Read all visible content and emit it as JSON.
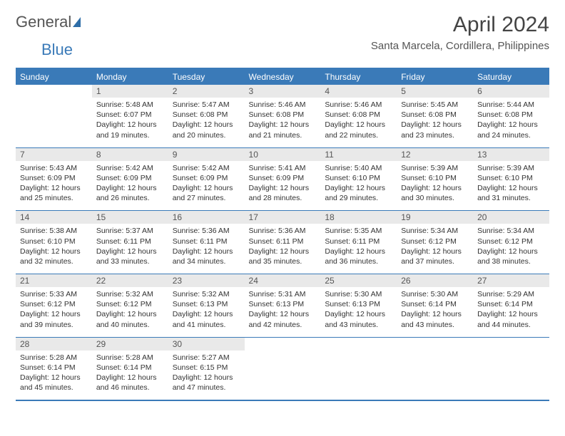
{
  "brand": {
    "part1": "General",
    "part2": "Blue"
  },
  "title": "April 2024",
  "location": "Santa Marcela, Cordillera, Philippines",
  "colors": {
    "primary": "#3a7ab8",
    "header_gray": "#e9e9e9",
    "text": "#333333",
    "bg": "#ffffff"
  },
  "day_headers": [
    "Sunday",
    "Monday",
    "Tuesday",
    "Wednesday",
    "Thursday",
    "Friday",
    "Saturday"
  ],
  "weeks": [
    [
      {
        "n": "",
        "lines": [
          "",
          "",
          "",
          ""
        ]
      },
      {
        "n": "1",
        "lines": [
          "Sunrise: 5:48 AM",
          "Sunset: 6:07 PM",
          "Daylight: 12 hours",
          "and 19 minutes."
        ]
      },
      {
        "n": "2",
        "lines": [
          "Sunrise: 5:47 AM",
          "Sunset: 6:08 PM",
          "Daylight: 12 hours",
          "and 20 minutes."
        ]
      },
      {
        "n": "3",
        "lines": [
          "Sunrise: 5:46 AM",
          "Sunset: 6:08 PM",
          "Daylight: 12 hours",
          "and 21 minutes."
        ]
      },
      {
        "n": "4",
        "lines": [
          "Sunrise: 5:46 AM",
          "Sunset: 6:08 PM",
          "Daylight: 12 hours",
          "and 22 minutes."
        ]
      },
      {
        "n": "5",
        "lines": [
          "Sunrise: 5:45 AM",
          "Sunset: 6:08 PM",
          "Daylight: 12 hours",
          "and 23 minutes."
        ]
      },
      {
        "n": "6",
        "lines": [
          "Sunrise: 5:44 AM",
          "Sunset: 6:08 PM",
          "Daylight: 12 hours",
          "and 24 minutes."
        ]
      }
    ],
    [
      {
        "n": "7",
        "lines": [
          "Sunrise: 5:43 AM",
          "Sunset: 6:09 PM",
          "Daylight: 12 hours",
          "and 25 minutes."
        ]
      },
      {
        "n": "8",
        "lines": [
          "Sunrise: 5:42 AM",
          "Sunset: 6:09 PM",
          "Daylight: 12 hours",
          "and 26 minutes."
        ]
      },
      {
        "n": "9",
        "lines": [
          "Sunrise: 5:42 AM",
          "Sunset: 6:09 PM",
          "Daylight: 12 hours",
          "and 27 minutes."
        ]
      },
      {
        "n": "10",
        "lines": [
          "Sunrise: 5:41 AM",
          "Sunset: 6:09 PM",
          "Daylight: 12 hours",
          "and 28 minutes."
        ]
      },
      {
        "n": "11",
        "lines": [
          "Sunrise: 5:40 AM",
          "Sunset: 6:10 PM",
          "Daylight: 12 hours",
          "and 29 minutes."
        ]
      },
      {
        "n": "12",
        "lines": [
          "Sunrise: 5:39 AM",
          "Sunset: 6:10 PM",
          "Daylight: 12 hours",
          "and 30 minutes."
        ]
      },
      {
        "n": "13",
        "lines": [
          "Sunrise: 5:39 AM",
          "Sunset: 6:10 PM",
          "Daylight: 12 hours",
          "and 31 minutes."
        ]
      }
    ],
    [
      {
        "n": "14",
        "lines": [
          "Sunrise: 5:38 AM",
          "Sunset: 6:10 PM",
          "Daylight: 12 hours",
          "and 32 minutes."
        ]
      },
      {
        "n": "15",
        "lines": [
          "Sunrise: 5:37 AM",
          "Sunset: 6:11 PM",
          "Daylight: 12 hours",
          "and 33 minutes."
        ]
      },
      {
        "n": "16",
        "lines": [
          "Sunrise: 5:36 AM",
          "Sunset: 6:11 PM",
          "Daylight: 12 hours",
          "and 34 minutes."
        ]
      },
      {
        "n": "17",
        "lines": [
          "Sunrise: 5:36 AM",
          "Sunset: 6:11 PM",
          "Daylight: 12 hours",
          "and 35 minutes."
        ]
      },
      {
        "n": "18",
        "lines": [
          "Sunrise: 5:35 AM",
          "Sunset: 6:11 PM",
          "Daylight: 12 hours",
          "and 36 minutes."
        ]
      },
      {
        "n": "19",
        "lines": [
          "Sunrise: 5:34 AM",
          "Sunset: 6:12 PM",
          "Daylight: 12 hours",
          "and 37 minutes."
        ]
      },
      {
        "n": "20",
        "lines": [
          "Sunrise: 5:34 AM",
          "Sunset: 6:12 PM",
          "Daylight: 12 hours",
          "and 38 minutes."
        ]
      }
    ],
    [
      {
        "n": "21",
        "lines": [
          "Sunrise: 5:33 AM",
          "Sunset: 6:12 PM",
          "Daylight: 12 hours",
          "and 39 minutes."
        ]
      },
      {
        "n": "22",
        "lines": [
          "Sunrise: 5:32 AM",
          "Sunset: 6:12 PM",
          "Daylight: 12 hours",
          "and 40 minutes."
        ]
      },
      {
        "n": "23",
        "lines": [
          "Sunrise: 5:32 AM",
          "Sunset: 6:13 PM",
          "Daylight: 12 hours",
          "and 41 minutes."
        ]
      },
      {
        "n": "24",
        "lines": [
          "Sunrise: 5:31 AM",
          "Sunset: 6:13 PM",
          "Daylight: 12 hours",
          "and 42 minutes."
        ]
      },
      {
        "n": "25",
        "lines": [
          "Sunrise: 5:30 AM",
          "Sunset: 6:13 PM",
          "Daylight: 12 hours",
          "and 43 minutes."
        ]
      },
      {
        "n": "26",
        "lines": [
          "Sunrise: 5:30 AM",
          "Sunset: 6:14 PM",
          "Daylight: 12 hours",
          "and 43 minutes."
        ]
      },
      {
        "n": "27",
        "lines": [
          "Sunrise: 5:29 AM",
          "Sunset: 6:14 PM",
          "Daylight: 12 hours",
          "and 44 minutes."
        ]
      }
    ],
    [
      {
        "n": "28",
        "lines": [
          "Sunrise: 5:28 AM",
          "Sunset: 6:14 PM",
          "Daylight: 12 hours",
          "and 45 minutes."
        ]
      },
      {
        "n": "29",
        "lines": [
          "Sunrise: 5:28 AM",
          "Sunset: 6:14 PM",
          "Daylight: 12 hours",
          "and 46 minutes."
        ]
      },
      {
        "n": "30",
        "lines": [
          "Sunrise: 5:27 AM",
          "Sunset: 6:15 PM",
          "Daylight: 12 hours",
          "and 47 minutes."
        ]
      },
      {
        "n": "",
        "lines": [
          "",
          "",
          "",
          ""
        ]
      },
      {
        "n": "",
        "lines": [
          "",
          "",
          "",
          ""
        ]
      },
      {
        "n": "",
        "lines": [
          "",
          "",
          "",
          ""
        ]
      },
      {
        "n": "",
        "lines": [
          "",
          "",
          "",
          ""
        ]
      }
    ]
  ]
}
